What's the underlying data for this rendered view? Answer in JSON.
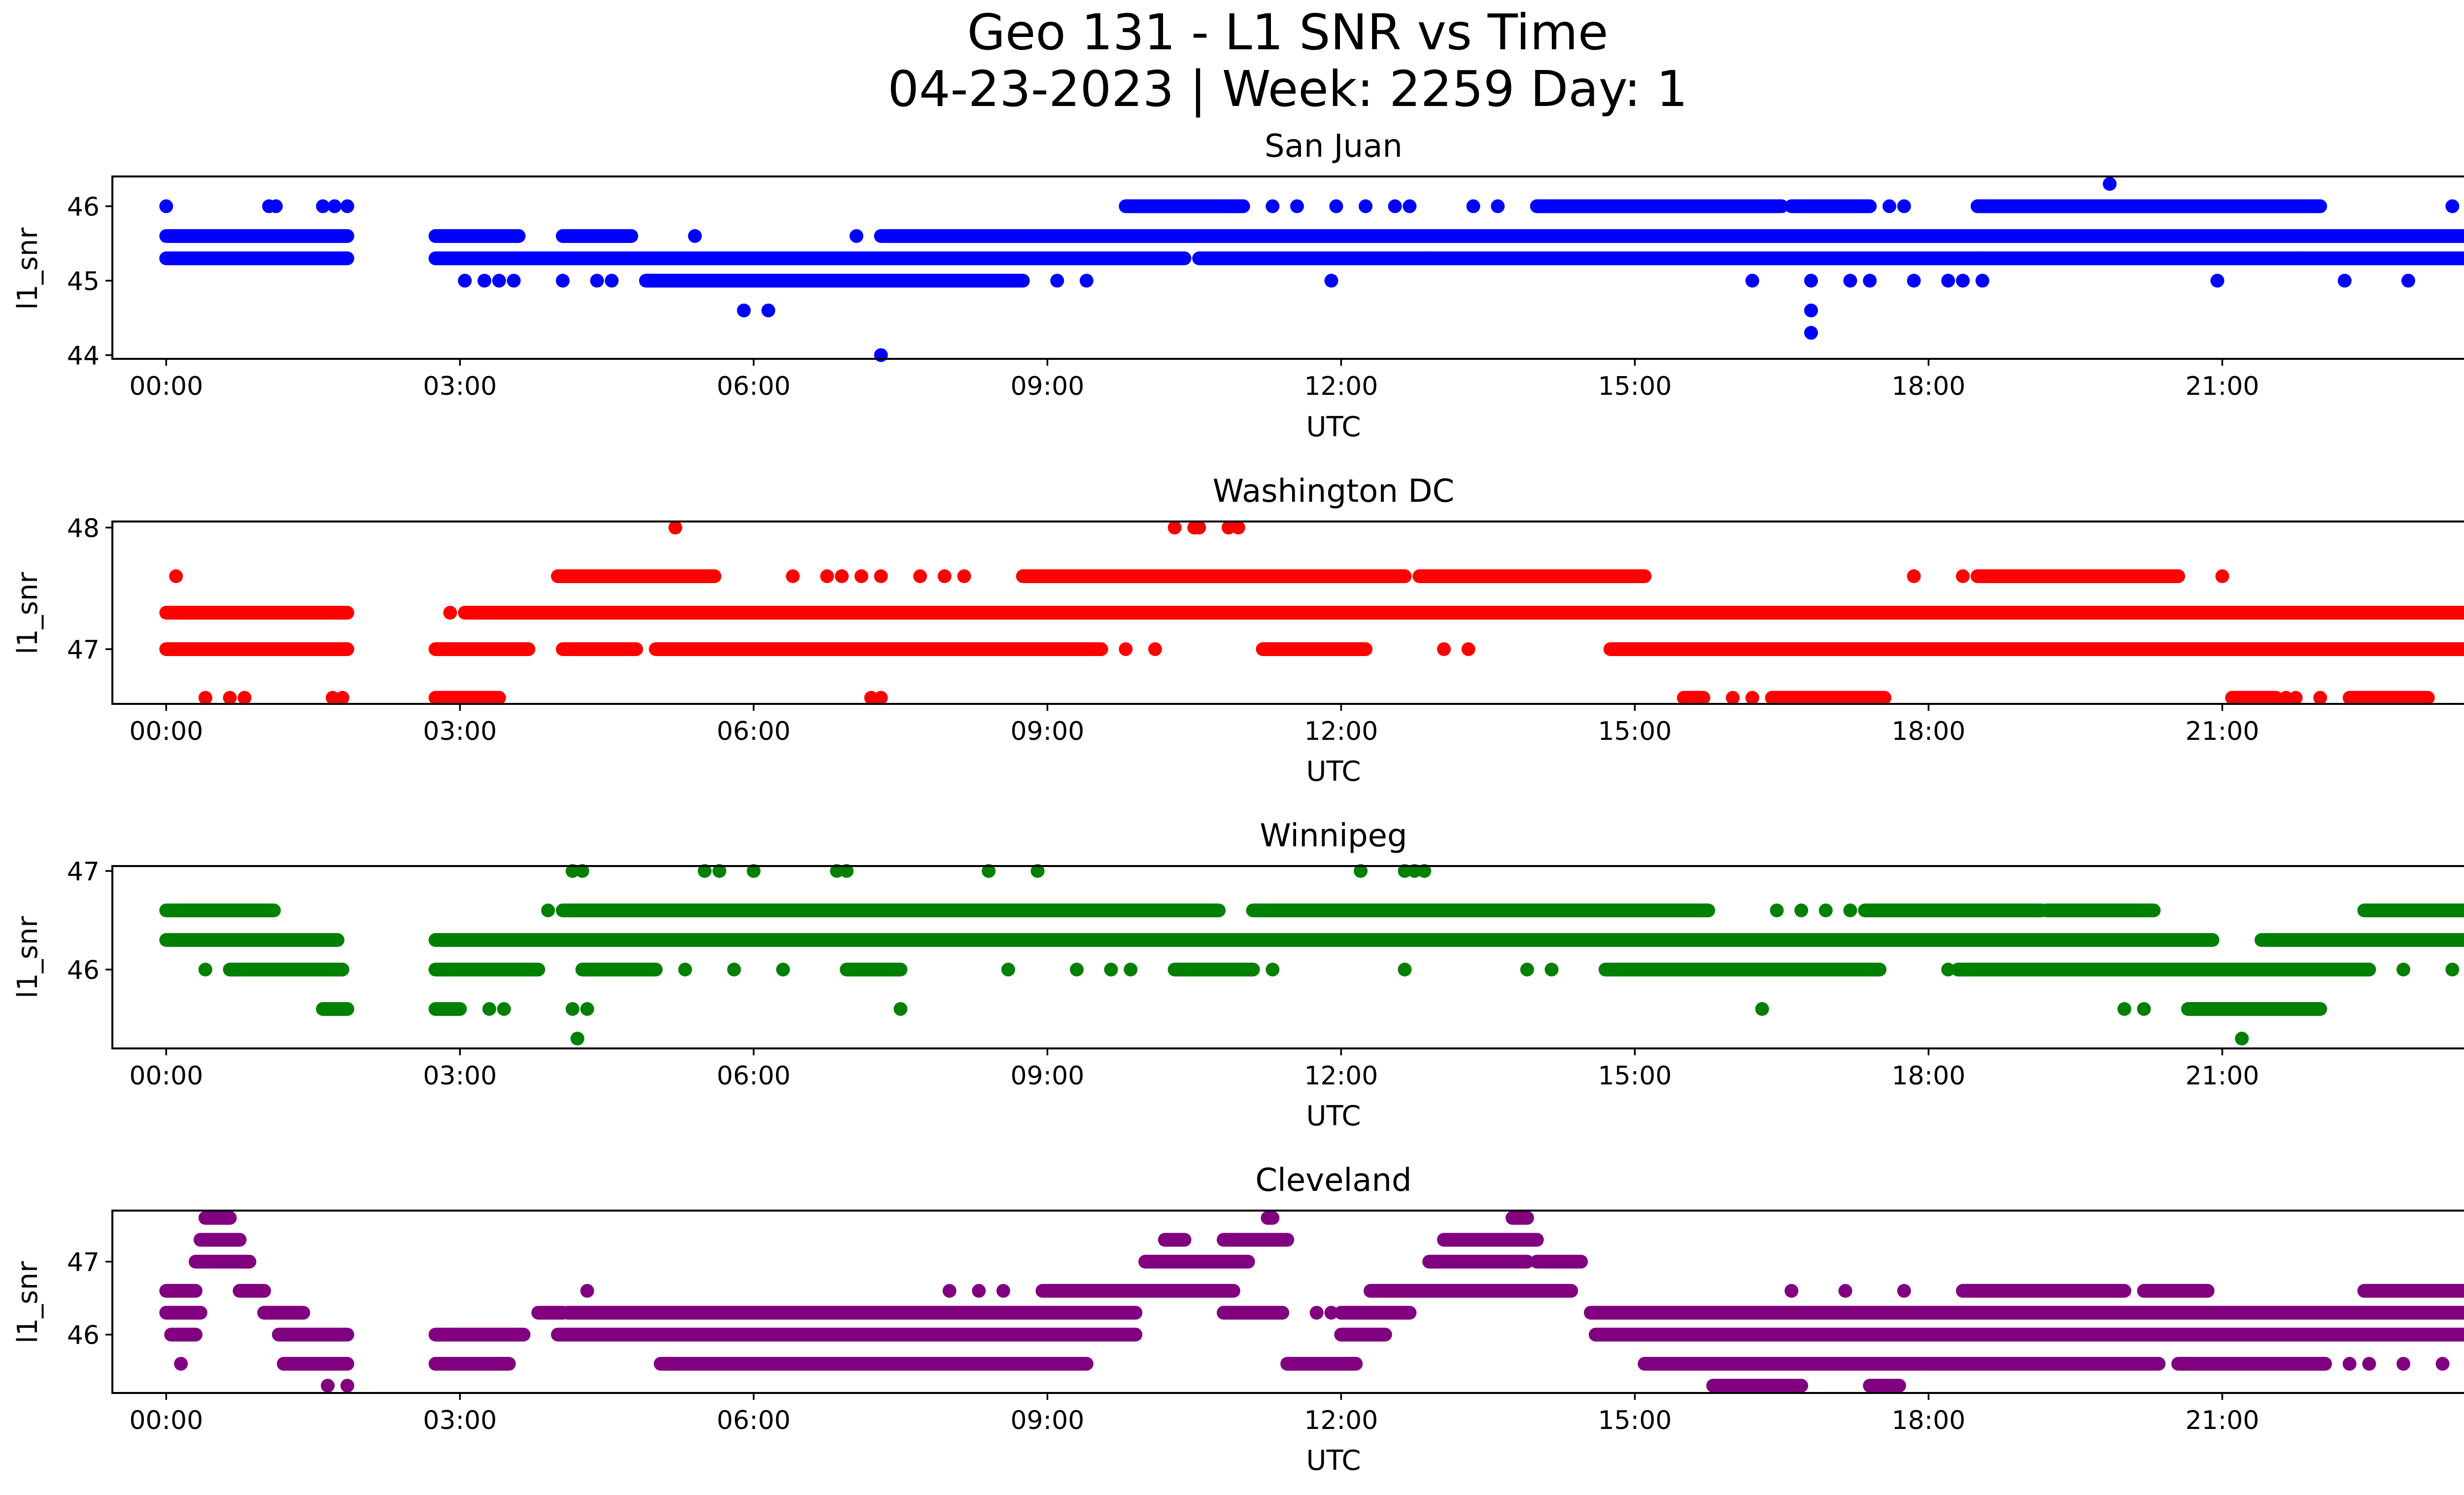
{
  "figure": {
    "title_line1": "Geo 131 - L1 SNR vs Time",
    "title_line2": "04-23-2023 | Week: 2259 Day: 1"
  },
  "chart_data": [
    {
      "type": "scatter",
      "title": "San Juan",
      "xlabel": "UTC",
      "ylabel": "l1_snr",
      "color": "#0000ff",
      "xlim": [
        -0.55,
        24.4
      ],
      "ylim": [
        43.95,
        46.4
      ],
      "xticks": [
        "00:00",
        "03:00",
        "06:00",
        "09:00",
        "12:00",
        "15:00",
        "18:00",
        "21:00",
        "00:00"
      ],
      "yticks": [
        44,
        45,
        46
      ],
      "levels": [
        {
          "y": 45.3,
          "runs": [
            [
              0.0,
              1.85
            ],
            [
              2.75,
              5.0
            ],
            [
              5.0,
              9.0
            ],
            [
              9.0,
              10.4
            ],
            [
              10.55,
              12.9
            ],
            [
              12.9,
              18.5
            ],
            [
              18.5,
              21.8
            ],
            [
              21.8,
              24.0
            ]
          ]
        },
        {
          "y": 45.6,
          "runs": [
            [
              0.0,
              1.85
            ],
            [
              2.75,
              3.6
            ],
            [
              4.05,
              4.75
            ],
            [
              7.3,
              8.8
            ],
            [
              8.8,
              24.0
            ]
          ]
        },
        {
          "y": 46.0,
          "runs": [
            [
              9.8,
              11.0
            ],
            [
              14.0,
              16.5
            ],
            [
              16.6,
              17.4
            ],
            [
              18.5,
              22.0
            ]
          ]
        },
        {
          "y": 45.0,
          "runs": [
            [
              4.9,
              8.75
            ]
          ]
        }
      ],
      "points": [
        [
          0.0,
          46.0
        ],
        [
          1.05,
          46.0
        ],
        [
          1.12,
          46.0
        ],
        [
          1.6,
          46.0
        ],
        [
          1.72,
          46.0
        ],
        [
          1.85,
          46.0
        ],
        [
          11.3,
          46.0
        ],
        [
          11.55,
          46.0
        ],
        [
          11.95,
          46.0
        ],
        [
          12.25,
          46.0
        ],
        [
          12.55,
          46.0
        ],
        [
          12.7,
          46.0
        ],
        [
          13.35,
          46.0
        ],
        [
          13.6,
          46.0
        ],
        [
          17.6,
          46.0
        ],
        [
          17.75,
          46.0
        ],
        [
          23.35,
          46.0
        ],
        [
          23.75,
          46.0
        ],
        [
          23.85,
          46.0
        ],
        [
          19.85,
          46.3
        ],
        [
          4.3,
          45.6
        ],
        [
          5.4,
          45.6
        ],
        [
          7.05,
          45.6
        ],
        [
          3.05,
          45.0
        ],
        [
          3.25,
          45.0
        ],
        [
          3.4,
          45.0
        ],
        [
          3.55,
          45.0
        ],
        [
          4.05,
          45.0
        ],
        [
          4.4,
          45.0
        ],
        [
          4.55,
          45.0
        ],
        [
          9.1,
          45.0
        ],
        [
          9.4,
          45.0
        ],
        [
          11.9,
          45.0
        ],
        [
          16.2,
          45.0
        ],
        [
          16.8,
          45.0
        ],
        [
          17.2,
          45.0
        ],
        [
          17.4,
          45.0
        ],
        [
          17.85,
          45.0
        ],
        [
          18.2,
          45.0
        ],
        [
          18.35,
          45.0
        ],
        [
          18.55,
          45.0
        ],
        [
          20.95,
          45.0
        ],
        [
          22.25,
          45.0
        ],
        [
          22.9,
          45.0
        ],
        [
          23.6,
          45.0
        ],
        [
          23.7,
          45.0
        ],
        [
          5.9,
          44.6
        ],
        [
          6.15,
          44.6
        ],
        [
          7.3,
          44.0
        ],
        [
          16.8,
          44.6
        ],
        [
          16.8,
          44.3
        ]
      ]
    },
    {
      "type": "scatter",
      "title": "Washington DC",
      "xlabel": "UTC",
      "ylabel": "l1_snr",
      "color": "#ff0000",
      "xlim": [
        -0.55,
        24.4
      ],
      "ylim": [
        46.55,
        48.05
      ],
      "xticks": [
        "00:00",
        "03:00",
        "06:00",
        "09:00",
        "12:00",
        "15:00",
        "18:00",
        "21:00",
        "00:00"
      ],
      "yticks": [
        47,
        48
      ],
      "levels": [
        {
          "y": 47.3,
          "runs": [
            [
              0.0,
              1.85
            ],
            [
              3.05,
              4.0
            ],
            [
              4.0,
              21.3
            ],
            [
              21.3,
              24.0
            ]
          ]
        },
        {
          "y": 47.0,
          "runs": [
            [
              0.0,
              1.85
            ],
            [
              2.75,
              3.7
            ],
            [
              4.05,
              4.8
            ],
            [
              5.0,
              9.55
            ],
            [
              11.2,
              12.25
            ],
            [
              14.75,
              21.0
            ],
            [
              21.0,
              24.0
            ]
          ]
        },
        {
          "y": 47.6,
          "runs": [
            [
              4.0,
              5.6
            ],
            [
              8.75,
              12.65
            ],
            [
              12.8,
              15.1
            ],
            [
              18.5,
              20.55
            ]
          ]
        },
        {
          "y": 46.6,
          "runs": [
            [
              2.75,
              3.4
            ],
            [
              15.5,
              15.7
            ],
            [
              16.4,
              17.55
            ],
            [
              21.1,
              21.55
            ],
            [
              22.3,
              23.1
            ]
          ]
        }
      ],
      "points": [
        [
          0.1,
          47.6
        ],
        [
          6.4,
          47.6
        ],
        [
          6.75,
          47.6
        ],
        [
          6.9,
          47.6
        ],
        [
          7.1,
          47.6
        ],
        [
          7.3,
          47.6
        ],
        [
          7.7,
          47.6
        ],
        [
          7.95,
          47.6
        ],
        [
          8.15,
          47.6
        ],
        [
          17.85,
          47.6
        ],
        [
          18.35,
          47.6
        ],
        [
          21.0,
          47.6
        ],
        [
          23.85,
          47.6
        ],
        [
          5.2,
          48.0
        ],
        [
          10.3,
          48.0
        ],
        [
          10.5,
          48.0
        ],
        [
          10.55,
          48.0
        ],
        [
          10.85,
          48.0
        ],
        [
          10.95,
          48.0
        ],
        [
          2.9,
          47.3
        ],
        [
          4.65,
          47.0
        ],
        [
          9.8,
          47.0
        ],
        [
          10.1,
          47.0
        ],
        [
          11.4,
          47.0
        ],
        [
          13.05,
          47.0
        ],
        [
          13.3,
          47.0
        ],
        [
          0.4,
          46.6
        ],
        [
          0.65,
          46.6
        ],
        [
          0.8,
          46.6
        ],
        [
          1.7,
          46.6
        ],
        [
          1.8,
          46.6
        ],
        [
          7.2,
          46.6
        ],
        [
          7.3,
          46.6
        ],
        [
          16.0,
          46.6
        ],
        [
          16.2,
          46.6
        ],
        [
          21.65,
          46.6
        ],
        [
          21.75,
          46.6
        ],
        [
          22.0,
          46.6
        ]
      ]
    },
    {
      "type": "scatter",
      "title": "Winnipeg",
      "xlabel": "UTC",
      "ylabel": "l1_snr",
      "color": "#008000",
      "xlim": [
        -0.55,
        24.4
      ],
      "ylim": [
        45.2,
        47.05
      ],
      "xticks": [
        "00:00",
        "03:00",
        "06:00",
        "09:00",
        "12:00",
        "15:00",
        "18:00",
        "21:00",
        "00:00"
      ],
      "yticks": [
        46,
        47
      ],
      "levels": [
        {
          "y": 46.6,
          "runs": [
            [
              0.0,
              1.1
            ],
            [
              4.05,
              10.75
            ],
            [
              11.1,
              15.75
            ],
            [
              17.35,
              19.15
            ],
            [
              19.2,
              20.3
            ],
            [
              22.45,
              24.0
            ]
          ]
        },
        {
          "y": 46.3,
          "runs": [
            [
              0.0,
              1.75
            ],
            [
              2.75,
              3.8
            ],
            [
              3.8,
              20.9
            ],
            [
              21.4,
              24.0
            ]
          ]
        },
        {
          "y": 46.0,
          "runs": [
            [
              0.65,
              1.8
            ],
            [
              2.75,
              3.8
            ],
            [
              4.25,
              5.0
            ],
            [
              6.95,
              7.5
            ],
            [
              10.3,
              11.1
            ],
            [
              14.7,
              17.5
            ],
            [
              18.3,
              21.7
            ],
            [
              21.7,
              22.5
            ]
          ]
        },
        {
          "y": 45.6,
          "runs": [
            [
              1.6,
              1.85
            ],
            [
              2.75,
              3.0
            ],
            [
              20.65,
              22.0
            ]
          ]
        }
      ],
      "points": [
        [
          4.15,
          47.0
        ],
        [
          4.25,
          47.0
        ],
        [
          5.5,
          47.0
        ],
        [
          5.65,
          47.0
        ],
        [
          6.0,
          47.0
        ],
        [
          6.85,
          47.0
        ],
        [
          6.95,
          47.0
        ],
        [
          8.4,
          47.0
        ],
        [
          8.9,
          47.0
        ],
        [
          12.2,
          47.0
        ],
        [
          12.65,
          47.0
        ],
        [
          12.85,
          47.0
        ],
        [
          12.75,
          47.0
        ],
        [
          23.9,
          47.0
        ],
        [
          3.9,
          46.6
        ],
        [
          11.15,
          46.6
        ],
        [
          16.45,
          46.6
        ],
        [
          16.7,
          46.6
        ],
        [
          16.95,
          46.6
        ],
        [
          17.2,
          46.6
        ],
        [
          0.4,
          46.0
        ],
        [
          5.3,
          46.0
        ],
        [
          5.8,
          46.0
        ],
        [
          6.3,
          46.0
        ],
        [
          7.3,
          46.0
        ],
        [
          8.6,
          46.0
        ],
        [
          9.3,
          46.0
        ],
        [
          9.65,
          46.0
        ],
        [
          9.85,
          46.0
        ],
        [
          11.3,
          46.0
        ],
        [
          12.65,
          46.0
        ],
        [
          13.9,
          46.0
        ],
        [
          14.15,
          46.0
        ],
        [
          18.2,
          46.0
        ],
        [
          22.85,
          46.0
        ],
        [
          23.35,
          46.0
        ],
        [
          23.7,
          46.0
        ],
        [
          3.3,
          45.6
        ],
        [
          3.45,
          45.6
        ],
        [
          4.15,
          45.6
        ],
        [
          4.3,
          45.6
        ],
        [
          7.5,
          45.6
        ],
        [
          16.3,
          45.6
        ],
        [
          20.0,
          45.6
        ],
        [
          20.2,
          45.6
        ],
        [
          4.2,
          45.3
        ],
        [
          21.2,
          45.3
        ]
      ]
    },
    {
      "type": "scatter",
      "title": "Cleveland",
      "xlabel": "UTC",
      "ylabel": "l1_snr",
      "color": "#800080",
      "xlim": [
        -0.55,
        24.4
      ],
      "ylim": [
        45.2,
        47.7
      ],
      "xticks": [
        "00:00",
        "03:00",
        "06:00",
        "09:00",
        "12:00",
        "15:00",
        "18:00",
        "21:00",
        "00:00"
      ],
      "yticks": [
        46,
        47
      ],
      "levels": [
        {
          "y": 46.3,
          "runs": [
            [
              0.0,
              0.35
            ],
            [
              1.0,
              1.4
            ],
            [
              3.8,
              4.05
            ],
            [
              4.1,
              9.9
            ],
            [
              10.8,
              11.4
            ],
            [
              12.0,
              12.7
            ],
            [
              14.55,
              24.0
            ]
          ]
        },
        {
          "y": 46.0,
          "runs": [
            [
              0.05,
              0.3
            ],
            [
              1.15,
              1.85
            ],
            [
              2.75,
              3.65
            ],
            [
              4.0,
              9.9
            ],
            [
              12.0,
              12.45
            ],
            [
              14.6,
              24.0
            ]
          ]
        },
        {
          "y": 45.6,
          "runs": [
            [
              1.2,
              1.85
            ],
            [
              2.75,
              3.5
            ],
            [
              5.05,
              9.4
            ],
            [
              11.45,
              12.15
            ],
            [
              15.1,
              18.0
            ],
            [
              18.0,
              20.35
            ],
            [
              20.55,
              22.05
            ]
          ]
        },
        {
          "y": 46.6,
          "runs": [
            [
              0.0,
              0.3
            ],
            [
              0.75,
              1.0
            ],
            [
              8.95,
              9.95
            ],
            [
              9.95,
              10.9
            ],
            [
              12.3,
              13.1
            ],
            [
              13.1,
              14.35
            ],
            [
              18.35,
              20.0
            ],
            [
              20.2,
              20.85
            ],
            [
              22.45,
              24.0
            ]
          ]
        },
        {
          "y": 47.0,
          "runs": [
            [
              0.3,
              0.85
            ],
            [
              10.0,
              11.05
            ],
            [
              12.9,
              13.9
            ],
            [
              14.0,
              14.45
            ]
          ]
        },
        {
          "y": 47.3,
          "runs": [
            [
              0.35,
              0.75
            ],
            [
              10.2,
              10.4
            ],
            [
              10.8,
              11.45
            ],
            [
              13.05,
              14.0
            ]
          ]
        },
        {
          "y": 47.6,
          "runs": [
            [
              0.4,
              0.65
            ],
            [
              11.25,
              11.3
            ],
            [
              13.75,
              13.9
            ]
          ]
        },
        {
          "y": 45.3,
          "runs": [
            [
              15.8,
              16.7
            ],
            [
              17.4,
              17.7
            ]
          ]
        }
      ],
      "points": [
        [
          0.15,
          45.6
        ],
        [
          1.65,
          45.3
        ],
        [
          1.85,
          45.3
        ],
        [
          4.3,
          46.6
        ],
        [
          8.0,
          46.6
        ],
        [
          8.3,
          46.6
        ],
        [
          8.55,
          46.6
        ],
        [
          11.75,
          46.3
        ],
        [
          11.9,
          46.3
        ],
        [
          16.6,
          46.6
        ],
        [
          17.15,
          46.6
        ],
        [
          17.75,
          46.6
        ],
        [
          22.3,
          45.6
        ],
        [
          22.5,
          45.6
        ],
        [
          22.85,
          45.6
        ],
        [
          23.25,
          45.6
        ],
        [
          23.85,
          46.0
        ]
      ]
    }
  ]
}
